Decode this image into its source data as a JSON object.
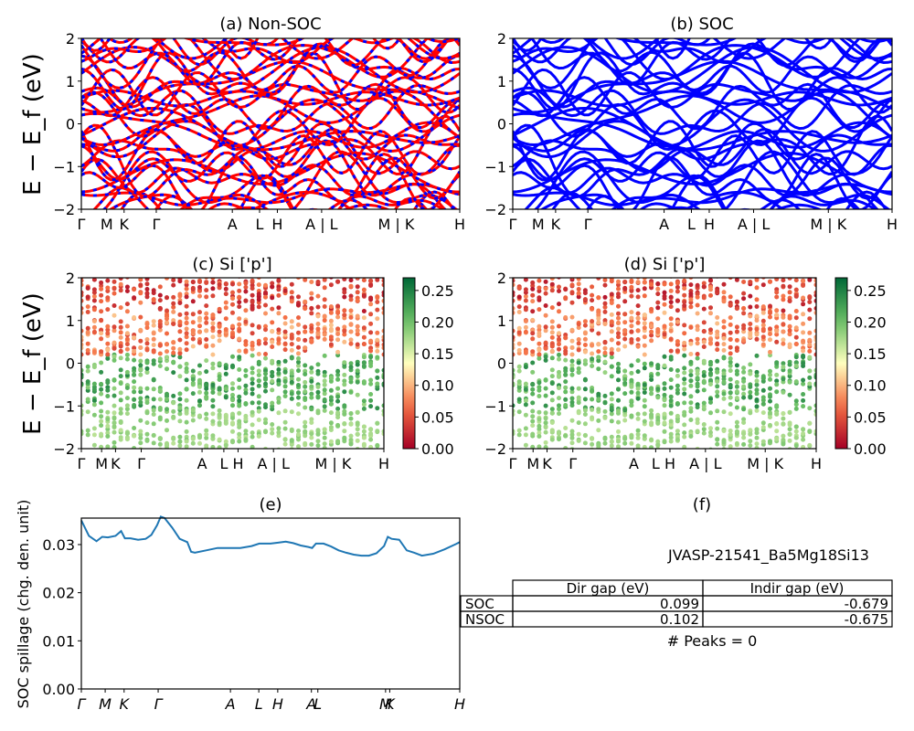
{
  "figure": {
    "kpoint_labels": [
      "Γ",
      "M",
      "K",
      "Γ",
      "A",
      "L",
      "H",
      "A | L",
      "M | K",
      "H"
    ],
    "kpoint_labels_e": [
      "Γ",
      "M",
      "K",
      "Γ",
      "A",
      "L",
      "H",
      "A",
      "L",
      "M",
      "K",
      "H"
    ],
    "ylabel_bands": "E − E_f (eV)",
    "ylabel_spillage": "SOC spillage (chg. den. unit)"
  },
  "chart_data": [
    {
      "panel": "a",
      "type": "line",
      "title": "(a) Non-SOC",
      "xlabel": "",
      "ylabel": "E − E_f (eV)",
      "ylim": [
        -2,
        2
      ],
      "yticks": [
        -2,
        -1,
        0,
        1,
        2
      ],
      "xticks": [
        "Γ",
        "M",
        "K",
        "Γ",
        "A",
        "L",
        "H",
        "A | L",
        "M | K",
        "H"
      ],
      "xtick_positions": [
        0,
        0.067,
        0.113,
        0.198,
        0.399,
        0.471,
        0.518,
        0.635,
        0.832,
        1.0
      ],
      "line_colors": [
        "#ff0000",
        "#0000ff"
      ],
      "style": "dense bands, red with blue dashes"
    },
    {
      "panel": "b",
      "type": "line",
      "title": "(b) SOC",
      "ylim": [
        -2,
        2
      ],
      "yticks": [
        -2,
        -1,
        0,
        1,
        2
      ],
      "xticks": [
        "Γ",
        "M",
        "K",
        "Γ",
        "A",
        "L",
        "H",
        "A | L",
        "M | K",
        "H"
      ],
      "line_colors": [
        "#0000ff"
      ]
    },
    {
      "panel": "c",
      "type": "scatter",
      "title": "(c)  Si ['p']",
      "ylim": [
        -2,
        2
      ],
      "yticks": [
        -2,
        -1,
        0,
        1,
        2
      ],
      "xticks": [
        "Γ",
        "M",
        "K",
        "Γ",
        "A",
        "L",
        "H",
        "A | L",
        "M | K",
        "H"
      ],
      "colorbar": {
        "min": 0.0,
        "max": 0.27,
        "ticks": [
          "0.00",
          "0.05",
          "0.10",
          "0.15",
          "0.20",
          "0.25"
        ],
        "colormap": "RdYlGn"
      }
    },
    {
      "panel": "d",
      "type": "scatter",
      "title": "(d) Si ['p']",
      "ylim": [
        -2,
        2
      ],
      "yticks": [
        -2,
        -1,
        0,
        1,
        2
      ],
      "xticks": [
        "Γ",
        "M",
        "K",
        "Γ",
        "A",
        "L",
        "H",
        "A | L",
        "M | K",
        "H"
      ],
      "colorbar": {
        "min": 0.0,
        "max": 0.27,
        "ticks": [
          "0.00",
          "0.05",
          "0.10",
          "0.15",
          "0.20",
          "0.25"
        ],
        "colormap": "RdYlGn"
      }
    },
    {
      "panel": "e",
      "type": "line",
      "title": "(e)",
      "ylabel": "SOC spillage (chg. den. unit)",
      "ylim": [
        0.0,
        0.0355
      ],
      "yticks": [
        "0.00",
        "0.01",
        "0.02",
        "0.03"
      ],
      "xticks": [
        "Γ",
        "M",
        "K",
        "Γ",
        "A",
        "L",
        "H",
        "A",
        "L",
        "M",
        "K",
        "H"
      ],
      "xtick_positions": [
        0,
        0.063,
        0.113,
        0.203,
        0.394,
        0.469,
        0.519,
        0.608,
        0.625,
        0.804,
        0.815,
        1.0
      ],
      "line_color": "#1f77b4",
      "series": [
        {
          "x": [
            0,
            0.02,
            0.04,
            0.055,
            0.07,
            0.09,
            0.105,
            0.115,
            0.13,
            0.15,
            0.17,
            0.185,
            0.2,
            0.21,
            0.22,
            0.24,
            0.26,
            0.28,
            0.29,
            0.3,
            0.33,
            0.36,
            0.39,
            0.42,
            0.45,
            0.47,
            0.5,
            0.52,
            0.54,
            0.56,
            0.58,
            0.6,
            0.61,
            0.62,
            0.64,
            0.66,
            0.68,
            0.7,
            0.72,
            0.74,
            0.76,
            0.78,
            0.8,
            0.81,
            0.82,
            0.84,
            0.86,
            0.88,
            0.9,
            0.93,
            0.96,
            0.99,
            1.0
          ],
          "y": [
            0.035,
            0.0318,
            0.0307,
            0.0316,
            0.0315,
            0.0318,
            0.0328,
            0.0313,
            0.0313,
            0.031,
            0.0312,
            0.032,
            0.034,
            0.0358,
            0.0355,
            0.0335,
            0.0312,
            0.0305,
            0.0285,
            0.0283,
            0.0288,
            0.0293,
            0.0293,
            0.0293,
            0.0297,
            0.0302,
            0.0302,
            0.0304,
            0.0306,
            0.0303,
            0.0298,
            0.0295,
            0.0293,
            0.0302,
            0.0302,
            0.0296,
            0.0288,
            0.0283,
            0.0279,
            0.0277,
            0.0277,
            0.0282,
            0.0297,
            0.0316,
            0.0312,
            0.031,
            0.0288,
            0.0283,
            0.0277,
            0.0281,
            0.029,
            0.0301,
            0.0305
          ]
        }
      ]
    }
  ],
  "panel_f": {
    "title": "(f)",
    "material_id": "JVASP-21541_Ba5Mg18Si13",
    "table": {
      "headers": [
        "Dir gap (eV)",
        "Indir gap (eV)"
      ],
      "rows": [
        {
          "label": "SOC",
          "dir": "0.099",
          "indir": "-0.679"
        },
        {
          "label": "NSOC",
          "dir": "0.102",
          "indir": "-0.675"
        }
      ]
    },
    "peaks_text": "# Peaks = 0"
  }
}
